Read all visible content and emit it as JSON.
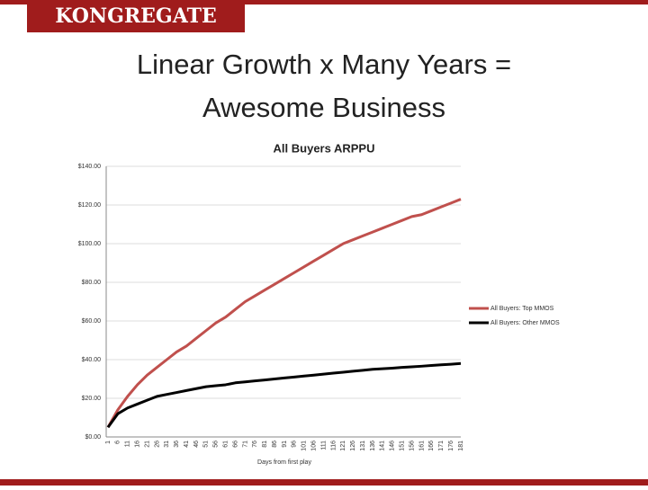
{
  "logo": "KONGREGATE",
  "title": [
    "Linear Growth x Many Years =",
    "Awesome Business"
  ],
  "chart_data": {
    "type": "line",
    "title": "All Buyers ARPPU",
    "x_label": "Days from first play",
    "categories": [
      "1",
      "6",
      "11",
      "16",
      "21",
      "26",
      "31",
      "36",
      "41",
      "46",
      "51",
      "56",
      "61",
      "66",
      "71",
      "76",
      "81",
      "86",
      "91",
      "96",
      "101",
      "106",
      "111",
      "116",
      "121",
      "126",
      "131",
      "136",
      "141",
      "146",
      "151",
      "156",
      "161",
      "166",
      "171",
      "176",
      "181"
    ],
    "series": [
      {
        "name": "All Buyers: Top MMOS",
        "color": "#c0504d",
        "values": [
          5,
          14,
          21,
          27,
          32,
          36,
          40,
          44,
          47,
          51,
          55,
          59,
          62,
          66,
          70,
          73,
          76,
          79,
          82,
          85,
          88,
          91,
          94,
          97,
          100,
          102,
          104,
          106,
          108,
          110,
          112,
          114,
          115,
          117,
          119,
          121,
          123
        ]
      },
      {
        "name": "All Buyers: Other MMOS",
        "color": "#000000",
        "values": [
          5,
          12,
          15,
          17,
          19,
          21,
          22,
          23,
          24,
          25,
          26,
          26.5,
          27,
          28,
          28.5,
          29,
          29.5,
          30,
          30.5,
          31,
          31.5,
          32,
          32.5,
          33,
          33.5,
          34,
          34.5,
          35,
          35.3,
          35.6,
          36,
          36.3,
          36.6,
          37,
          37.3,
          37.6,
          38
        ]
      }
    ],
    "ylim": [
      0,
      140
    ],
    "yticks": [
      {
        "value": 0,
        "label": "$0.00"
      },
      {
        "value": 20,
        "label": "$20.00"
      },
      {
        "value": 40,
        "label": "$40.00"
      },
      {
        "value": 60,
        "label": "$60.00"
      },
      {
        "value": 80,
        "label": "$80.00"
      },
      {
        "value": 100,
        "label": "$100.00"
      },
      {
        "value": 120,
        "label": "$120.00"
      },
      {
        "value": 140,
        "label": "$140.00"
      }
    ],
    "grid": true,
    "legend": "right"
  }
}
